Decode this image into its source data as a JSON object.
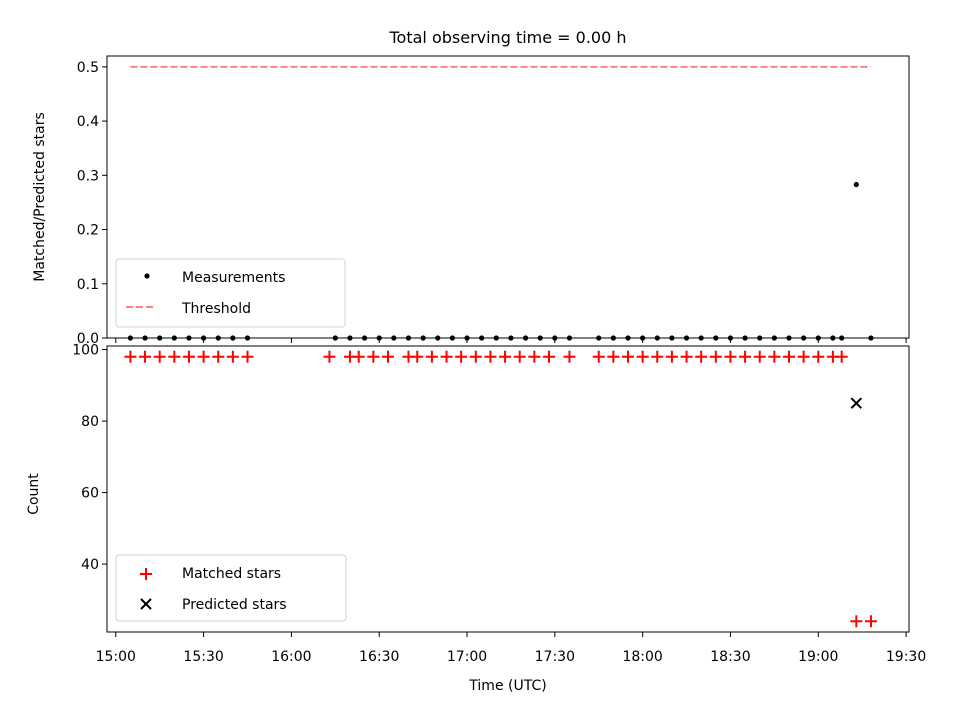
{
  "chart_data": [
    {
      "type": "scatter",
      "title": "Total observing time = 0.00 h",
      "xlabel": "",
      "ylabel": "Matched/Predicted stars",
      "ylim": [
        0,
        0.52
      ],
      "yticks": [
        "0.0",
        "0.1",
        "0.2",
        "0.3",
        "0.4",
        "0.5"
      ],
      "legend": {
        "placement": "lower-left",
        "entries": [
          "Measurements",
          "Threshold"
        ]
      },
      "grid": false,
      "series": [
        {
          "name": "Measurements",
          "color": "#000000",
          "marker": "dot",
          "points": [
            [
              "15:05",
              0
            ],
            [
              "15:10",
              0
            ],
            [
              "15:15",
              0
            ],
            [
              "15:20",
              0
            ],
            [
              "15:25",
              0
            ],
            [
              "15:30",
              0
            ],
            [
              "15:35",
              0
            ],
            [
              "15:40",
              0
            ],
            [
              "15:45",
              0
            ],
            [
              "16:15",
              0
            ],
            [
              "16:20",
              0
            ],
            [
              "16:25",
              0
            ],
            [
              "16:30",
              0
            ],
            [
              "16:35",
              0
            ],
            [
              "16:40",
              0
            ],
            [
              "16:45",
              0
            ],
            [
              "16:50",
              0
            ],
            [
              "16:55",
              0
            ],
            [
              "17:00",
              0
            ],
            [
              "17:05",
              0
            ],
            [
              "17:10",
              0
            ],
            [
              "17:15",
              0
            ],
            [
              "17:20",
              0
            ],
            [
              "17:25",
              0
            ],
            [
              "17:30",
              0
            ],
            [
              "17:35",
              0
            ],
            [
              "17:45",
              0
            ],
            [
              "17:50",
              0
            ],
            [
              "17:55",
              0
            ],
            [
              "18:00",
              0
            ],
            [
              "18:05",
              0
            ],
            [
              "18:10",
              0
            ],
            [
              "18:15",
              0
            ],
            [
              "18:20",
              0
            ],
            [
              "18:25",
              0
            ],
            [
              "18:30",
              0
            ],
            [
              "18:35",
              0
            ],
            [
              "18:40",
              0
            ],
            [
              "18:45",
              0
            ],
            [
              "18:50",
              0
            ],
            [
              "18:55",
              0
            ],
            [
              "19:00",
              0
            ],
            [
              "19:05",
              0
            ],
            [
              "19:08",
              0
            ],
            [
              "19:13",
              0.283
            ],
            [
              "19:18",
              0
            ]
          ]
        },
        {
          "name": "Threshold",
          "color": "#ff7f7f",
          "line": "dashed",
          "points": [
            [
              "15:05",
              0.5
            ],
            [
              "19:18",
              0.5
            ]
          ]
        }
      ]
    },
    {
      "type": "scatter",
      "title": "",
      "xlabel": "Time (UTC)",
      "ylabel": "Count",
      "ylim": [
        21,
        101
      ],
      "yticks": [
        "40",
        "60",
        "80",
        "100"
      ],
      "xlim": [
        "14:57",
        "19:31"
      ],
      "xticks": [
        "15:00",
        "15:30",
        "16:00",
        "16:30",
        "17:00",
        "17:30",
        "18:00",
        "18:30",
        "19:00",
        "19:30"
      ],
      "legend": {
        "placement": "lower-left",
        "entries": [
          "Matched stars",
          "Predicted stars"
        ]
      },
      "grid": false,
      "series": [
        {
          "name": "Matched stars",
          "color": "#ff0000",
          "marker": "plus",
          "points": [
            [
              "15:05",
              98
            ],
            [
              "15:10",
              98
            ],
            [
              "15:15",
              98
            ],
            [
              "15:20",
              98
            ],
            [
              "15:25",
              98
            ],
            [
              "15:30",
              98
            ],
            [
              "15:35",
              98
            ],
            [
              "15:40",
              98
            ],
            [
              "15:45",
              98
            ],
            [
              "16:13",
              98
            ],
            [
              "16:20",
              98
            ],
            [
              "16:23",
              98
            ],
            [
              "16:28",
              98
            ],
            [
              "16:33",
              98
            ],
            [
              "16:40",
              98
            ],
            [
              "16:43",
              98
            ],
            [
              "16:48",
              98
            ],
            [
              "16:53",
              98
            ],
            [
              "16:58",
              98
            ],
            [
              "17:03",
              98
            ],
            [
              "17:08",
              98
            ],
            [
              "17:13",
              98
            ],
            [
              "17:18",
              98
            ],
            [
              "17:23",
              98
            ],
            [
              "17:28",
              98
            ],
            [
              "17:35",
              98
            ],
            [
              "17:45",
              98
            ],
            [
              "17:50",
              98
            ],
            [
              "17:55",
              98
            ],
            [
              "18:00",
              98
            ],
            [
              "18:05",
              98
            ],
            [
              "18:10",
              98
            ],
            [
              "18:15",
              98
            ],
            [
              "18:20",
              98
            ],
            [
              "18:25",
              98
            ],
            [
              "18:30",
              98
            ],
            [
              "18:35",
              98
            ],
            [
              "18:40",
              98
            ],
            [
              "18:45",
              98
            ],
            [
              "18:50",
              98
            ],
            [
              "18:55",
              98
            ],
            [
              "19:00",
              98
            ],
            [
              "19:05",
              98
            ],
            [
              "19:08",
              98
            ],
            [
              "19:13",
              24
            ],
            [
              "19:18",
              24
            ]
          ]
        },
        {
          "name": "Predicted stars",
          "color": "#000000",
          "marker": "x",
          "points": [
            [
              "19:13",
              85
            ]
          ]
        }
      ]
    }
  ]
}
